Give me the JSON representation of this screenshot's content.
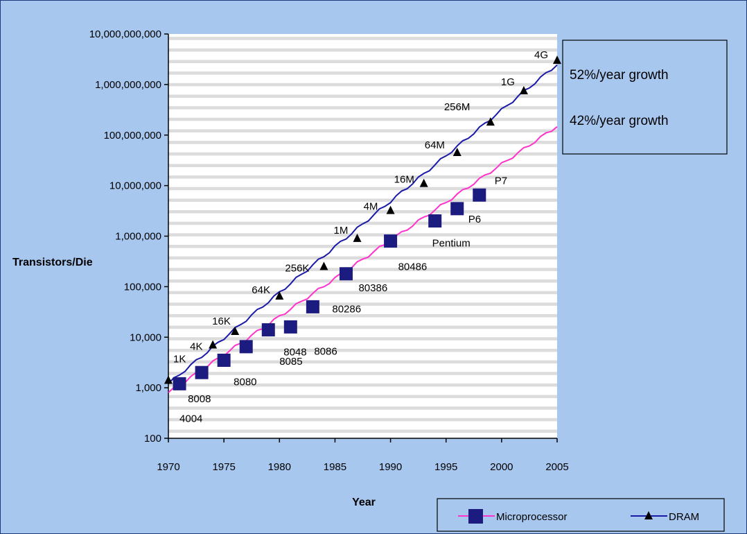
{
  "chart_data": {
    "type": "scatter",
    "xlabel": "Year",
    "ylabel": "Transistors/Die",
    "xlim": [
      1970,
      2005
    ],
    "ylim": [
      100,
      10000000000
    ],
    "yscale": "log",
    "x_ticks": [
      "1970",
      "1975",
      "1980",
      "1985",
      "1990",
      "1995",
      "2000",
      "2005"
    ],
    "y_ticks": [
      "100",
      "1,000",
      "10,000",
      "100,000",
      "1,000,000",
      "10,000,000",
      "100,000,000",
      "1,000,000,000",
      "10,000,000,000"
    ],
    "grid": "horizontal bands",
    "legend_position": "bottom-right",
    "annotations": [
      "52%/year  growth",
      "42%/year  growth"
    ],
    "colors": {
      "background": "#a7c7ef",
      "plot_area": "#ffffff",
      "grid_band": "#dcdcdc",
      "microprocessor_marker": "#1b1b80",
      "microprocessor_line": "#ff33cc",
      "dram_marker": "#000000",
      "dram_line": "#1a1aa8"
    },
    "series": [
      {
        "name": "Microprocessor",
        "points": [
          {
            "label": "4004",
            "x": 1971,
            "y": 1200
          },
          {
            "label": "8008",
            "x": 1973,
            "y": 2000
          },
          {
            "label": "8080",
            "x": 1975,
            "y": 3500
          },
          {
            "label": "8085",
            "x": 1977,
            "y": 6500
          },
          {
            "label": "8048",
            "x": 1979,
            "y": 14000
          },
          {
            "label": "8086",
            "x": 1981,
            "y": 16000
          },
          {
            "label": "80286",
            "x": 1983,
            "y": 40000
          },
          {
            "label": "80386",
            "x": 1986,
            "y": 180000
          },
          {
            "label": "80486",
            "x": 1990,
            "y": 800000
          },
          {
            "label": "Pentium",
            "x": 1994,
            "y": 2000000
          },
          {
            "label": "P6",
            "x": 1996,
            "y": 3500000
          },
          {
            "label": "P7",
            "x": 1998,
            "y": 6500000
          }
        ],
        "trend": [
          [
            1970,
            800
          ],
          [
            2005,
            150000000
          ]
        ]
      },
      {
        "name": "DRAM",
        "points": [
          {
            "label": "1K",
            "x": 1970,
            "y": 1400
          },
          {
            "label": "4K",
            "x": 1974,
            "y": 7000
          },
          {
            "label": "16K",
            "x": 1976,
            "y": 13000
          },
          {
            "label": "64K",
            "x": 1980,
            "y": 65000
          },
          {
            "label": "256K",
            "x": 1984,
            "y": 250000
          },
          {
            "label": "1M",
            "x": 1987,
            "y": 900000
          },
          {
            "label": "4M",
            "x": 1990,
            "y": 3200000
          },
          {
            "label": "16M",
            "x": 1993,
            "y": 11000000
          },
          {
            "label": "64M",
            "x": 1996,
            "y": 45000000
          },
          {
            "label": "256M",
            "x": 1999,
            "y": 180000000
          },
          {
            "label": "1G",
            "x": 2002,
            "y": 750000000
          },
          {
            "label": "4G",
            "x": 2005,
            "y": 3000000000
          }
        ],
        "trend": [
          [
            1970,
            1200
          ],
          [
            2005,
            2500000000
          ]
        ]
      }
    ]
  }
}
